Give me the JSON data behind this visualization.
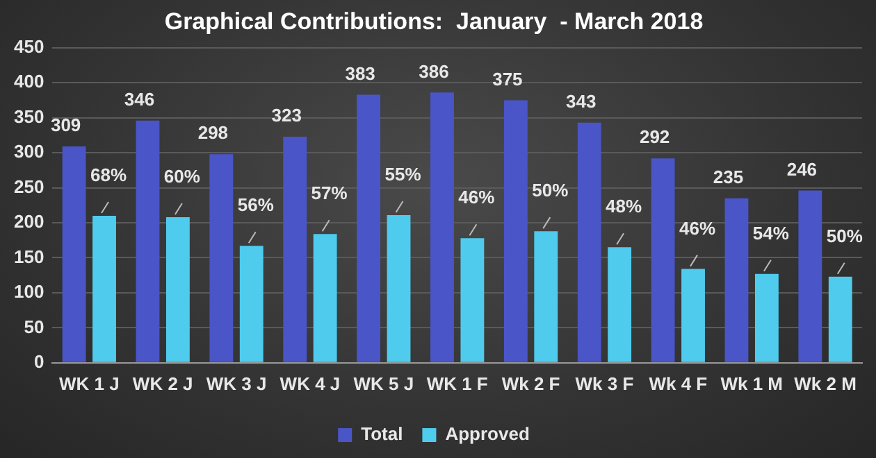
{
  "chart_data": {
    "type": "bar",
    "title": "Graphical Contributions:  January  - March 2018",
    "categories": [
      "WK 1 J",
      "WK 2 J",
      "WK 3 J",
      "WK 4 J",
      "WK 5 J",
      "WK 1 F",
      "Wk 2 F",
      "Wk 3 F",
      "Wk 4 F",
      "Wk 1 M",
      "Wk 2 M"
    ],
    "series": [
      {
        "name": "Total",
        "color": "#4a55c8",
        "values": [
          309,
          346,
          298,
          323,
          383,
          386,
          375,
          343,
          292,
          235,
          246
        ],
        "value_labels": [
          "309",
          "346",
          "298",
          "323",
          "383",
          "386",
          "375",
          "343",
          "292",
          "235",
          "246"
        ]
      },
      {
        "name": "Approved",
        "color": "#4fcbee",
        "values": [
          210,
          208,
          167,
          184,
          211,
          178,
          188,
          165,
          134,
          127,
          123
        ]
      }
    ],
    "annotations": [
      {
        "text": "68%",
        "x": "WK 1 J",
        "y": 210
      },
      {
        "text": "60%",
        "x": "WK 2 J",
        "y": 208
      },
      {
        "text": "56%",
        "x": "WK 3 J",
        "y": 167
      },
      {
        "text": "57%",
        "x": "WK 4 J",
        "y": 184
      },
      {
        "text": "55%",
        "x": "WK 5 J",
        "y": 211
      },
      {
        "text": "46%",
        "x": "WK 1 F",
        "y": 178
      },
      {
        "text": "50%",
        "x": "Wk 2 F",
        "y": 188
      },
      {
        "text": "48%",
        "x": "Wk 3 F",
        "y": 165
      },
      {
        "text": "46%",
        "x": "Wk 4 F",
        "y": 134
      },
      {
        "text": "54%",
        "x": "Wk 1 M",
        "y": 127
      },
      {
        "text": "50%",
        "x": "Wk 2 M",
        "y": 123
      }
    ],
    "ylim": [
      0,
      450
    ],
    "yticks": [
      0,
      50,
      100,
      150,
      200,
      250,
      300,
      350,
      400,
      450
    ],
    "grid": "y",
    "legend": "bottom"
  }
}
